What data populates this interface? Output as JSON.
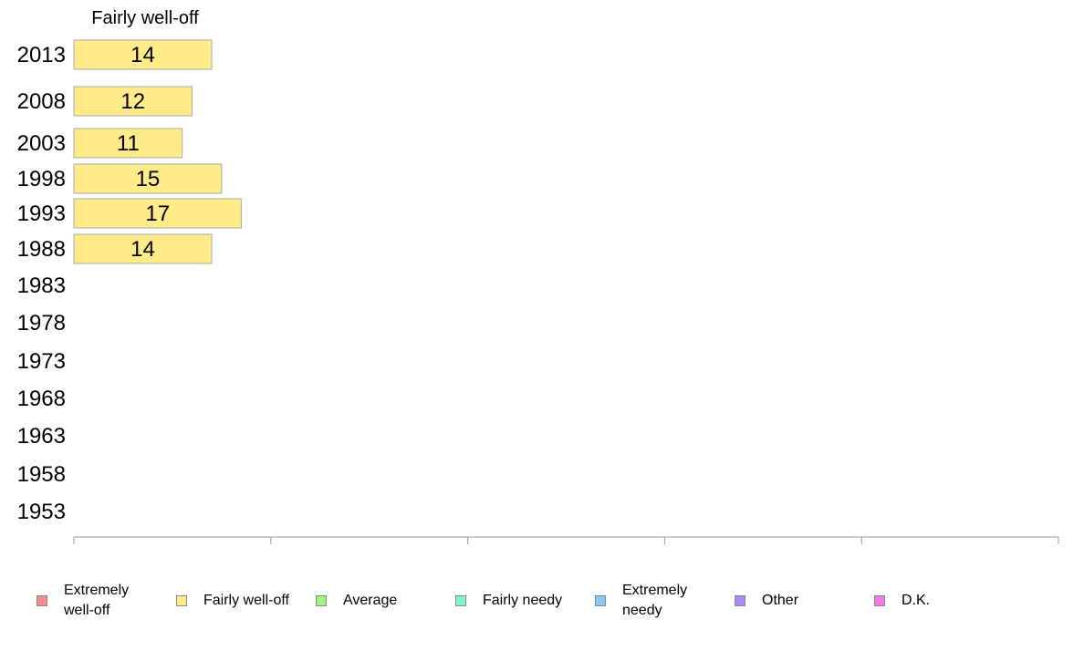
{
  "chart_data": {
    "type": "bar",
    "orientation": "horizontal",
    "title": "",
    "column_header": "Fairly well-off",
    "categories": [
      "2013",
      "2008",
      "2003",
      "1998",
      "1993",
      "1988",
      "1983",
      "1978",
      "1973",
      "1968",
      "1963",
      "1958",
      "1953"
    ],
    "series": [
      {
        "name": "Fairly well-off",
        "color": "#FFEB88",
        "values": [
          14,
          12,
          11,
          15,
          17,
          14,
          null,
          null,
          null,
          null,
          null,
          null,
          null
        ]
      }
    ],
    "xlim": [
      0,
      100
    ],
    "xticks": [
      "0",
      "20",
      "40",
      "60",
      "80",
      "100"
    ],
    "grid": false,
    "legend_position": "bottom"
  },
  "legend": [
    {
      "label": "Extremely\nwell-off",
      "color": "#F58A8A"
    },
    {
      "label": "Fairly well-off",
      "color": "#FFEB88"
    },
    {
      "label": "Average",
      "color": "#A6F27E"
    },
    {
      "label": "Fairly needy",
      "color": "#7DF7C8"
    },
    {
      "label": "Extremely\nneedy",
      "color": "#8CC8F5"
    },
    {
      "label": "Other",
      "color": "#A98AF2"
    },
    {
      "label": "D.K.",
      "color": "#F57AE8"
    }
  ]
}
